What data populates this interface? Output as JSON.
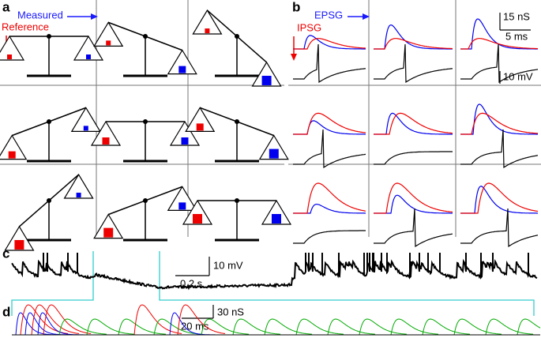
{
  "panels": [
    {
      "label": "a",
      "horizontal_arrow": "Measured",
      "vertical_arrow": "Reference"
    },
    {
      "label": "b",
      "horizontal_arrow": "EPSG",
      "vertical_arrow": "IPSG",
      "scale_bars": [
        "15 nS",
        "5 ms",
        "10 mV"
      ]
    },
    {
      "label": "c",
      "scale_bars": [
        "10 mV",
        "0.2 s"
      ]
    },
    {
      "label": "d",
      "scale_bars": [
        "30 nS",
        "20 ms"
      ]
    }
  ]
}
